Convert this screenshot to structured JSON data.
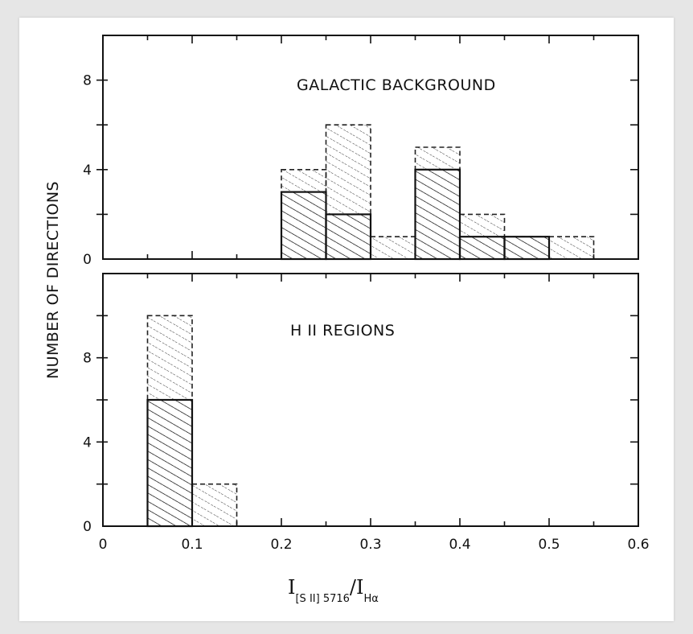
{
  "chart_data": [
    {
      "type": "bar",
      "panel": "top",
      "title": "GALACTIC BACKGROUND",
      "bin_edges": [
        0,
        0.05,
        0.1,
        0.15,
        0.2,
        0.25,
        0.3,
        0.35,
        0.4,
        0.45,
        0.5,
        0.55,
        0.6
      ],
      "series": [
        {
          "style": "solid hatched",
          "values": [
            0,
            0,
            0,
            0,
            3,
            2,
            0,
            4,
            1,
            1,
            0,
            0
          ]
        },
        {
          "style": "dashed stippled",
          "values": [
            0,
            0,
            0,
            0,
            4,
            6,
            1,
            5,
            2,
            1,
            1,
            0
          ]
        }
      ],
      "ylim": [
        0,
        10
      ],
      "yticks": [
        "0",
        "4",
        "8"
      ]
    },
    {
      "type": "bar",
      "panel": "bottom",
      "title": "H II REGIONS",
      "bin_edges": [
        0,
        0.05,
        0.1,
        0.15,
        0.2,
        0.25,
        0.3,
        0.35,
        0.4,
        0.45,
        0.5,
        0.55,
        0.6
      ],
      "series": [
        {
          "style": "solid hatched",
          "values": [
            0,
            6,
            0,
            0,
            0,
            0,
            0,
            0,
            0,
            0,
            0,
            0
          ]
        },
        {
          "style": "dashed stippled",
          "values": [
            0,
            10,
            2,
            0,
            0,
            0,
            0,
            0,
            0,
            0,
            0,
            0
          ]
        }
      ],
      "ylim": [
        0,
        12
      ],
      "yticks": [
        "0",
        "4",
        "8"
      ]
    }
  ],
  "axes": {
    "xticks": [
      "0",
      "0.1",
      "0.2",
      "0.3",
      "0.4",
      "0.5",
      "0.6"
    ],
    "xlim": [
      0,
      0.6
    ],
    "ylabel": "NUMBER OF DIRECTIONS",
    "xlabel": {
      "num_main": "I",
      "num_sub": "[S II] 5716",
      "slash": "/",
      "den_main": "I",
      "den_sub": "Hα"
    }
  },
  "colors": {
    "ink": "#111111",
    "background": "#e6e6e6",
    "card": "#ffffff"
  }
}
